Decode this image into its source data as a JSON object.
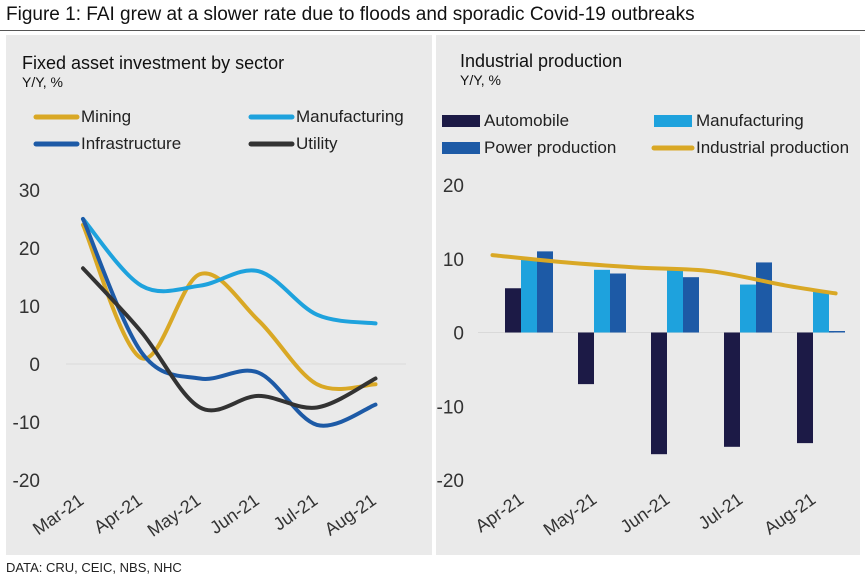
{
  "figure": {
    "title": "Figure 1: FAI grew at a slower rate due to floods and sporadic Covid-19 outbreaks",
    "source": "DATA: CRU, CEIC, NBS, NHC"
  },
  "chart_data": [
    {
      "type": "line",
      "title": "Fixed asset investment by sector",
      "subtitle": "Y/Y, %",
      "categories": [
        "Mar-21",
        "Apr-21",
        "May-21",
        "Jun-21",
        "Jul-21",
        "Aug-21"
      ],
      "ylim": [
        -20,
        30
      ],
      "yticks": [
        30,
        20,
        10,
        0,
        -10,
        -20
      ],
      "grid": false,
      "legend": "top",
      "series": [
        {
          "name": "Mining",
          "color": "#d9a825",
          "values": [
            24,
            1,
            15.5,
            7.5,
            -3.5,
            -3.5
          ]
        },
        {
          "name": "Manufacturing",
          "color": "#1ea2dd",
          "values": [
            25,
            13.5,
            13.5,
            16,
            8.5,
            7
          ]
        },
        {
          "name": "Infrastructure",
          "color": "#1d5aa6",
          "values": [
            25,
            2,
            -2.5,
            -1.5,
            -10.5,
            -7
          ]
        },
        {
          "name": "Utility",
          "color": "#333333",
          "values": [
            16.5,
            5.5,
            -7.5,
            -5.5,
            -7.5,
            -2.5
          ]
        }
      ]
    },
    {
      "type": "bar",
      "title": "Industrial production",
      "subtitle": "Y/Y, %",
      "categories": [
        "Apr-21",
        "May-21",
        "Jun-21",
        "Jul-21",
        "Aug-21"
      ],
      "ylim": [
        -20,
        20
      ],
      "yticks": [
        20,
        10,
        0,
        -10,
        -20
      ],
      "grid": false,
      "legend": "top",
      "series": [
        {
          "name": "Automobile",
          "type": "bar",
          "color": "#1c1a46",
          "values": [
            6,
            -7,
            -16.5,
            -15.5,
            -15
          ]
        },
        {
          "name": "Manufacturing",
          "type": "bar",
          "color": "#1ea2dd",
          "values": [
            10,
            8.5,
            8.5,
            6.5,
            5.5
          ]
        },
        {
          "name": "Power production",
          "type": "bar",
          "color": "#1d5aa6",
          "values": [
            11,
            8,
            7.5,
            9.5,
            0.2
          ]
        },
        {
          "name": "Industrial production",
          "type": "line",
          "color": "#d9a825",
          "x": [
            -0.5,
            0.5,
            1.5,
            2.5,
            3.5,
            4.2
          ],
          "values": [
            10.5,
            9.5,
            8.8,
            8.3,
            6.4,
            5.3
          ]
        }
      ]
    }
  ]
}
